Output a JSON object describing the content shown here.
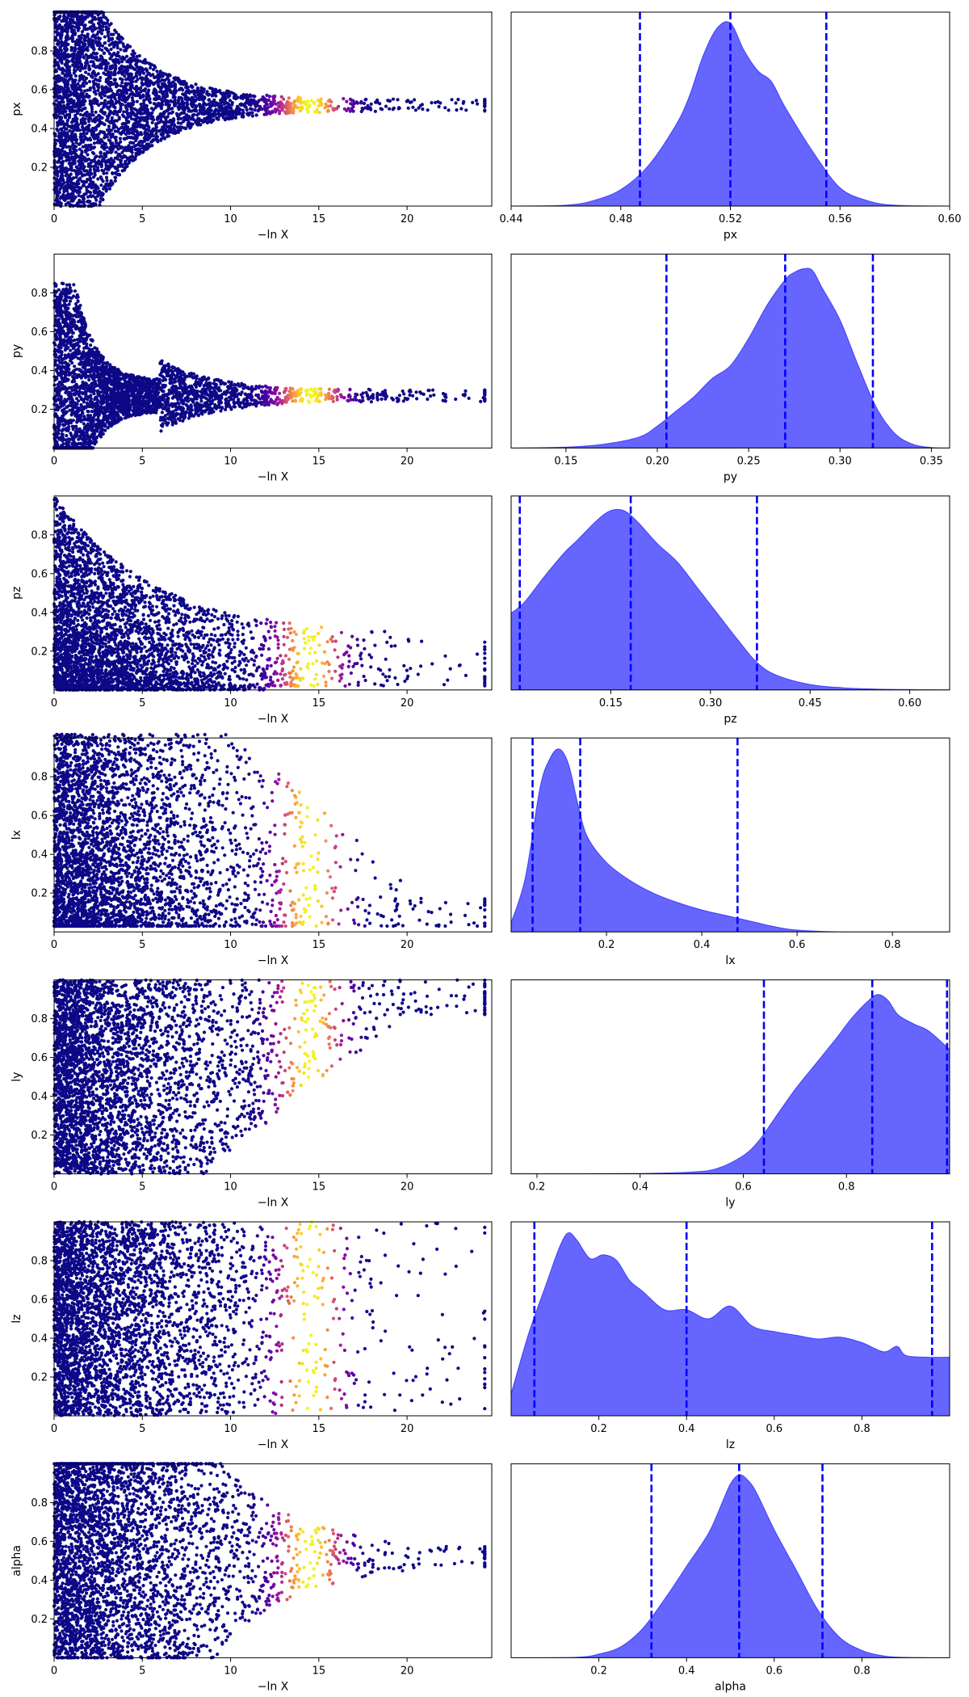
{
  "figure": {
    "kind": "dynesty trace plot"
  },
  "chart_data": [
    {
      "type": "scatter",
      "panel": "trace",
      "xlabel": "−ln X",
      "ylabel": "px",
      "xlim": [
        0,
        24.8
      ],
      "xticks": [
        "0",
        "5",
        "10",
        "15",
        "20"
      ],
      "ylim": [
        0.0,
        1.0
      ],
      "yticks": [
        "0.2",
        "0.4",
        "0.6",
        "0.8"
      ],
      "colormap": "plasma",
      "converge_value": 0.52,
      "converge_spread": 0.03,
      "spread_decay": 3.0,
      "mode": "converge"
    },
    {
      "type": "area",
      "panel": "marginal",
      "xlabel": "px",
      "xlim": [
        0.44,
        0.6
      ],
      "xticks": [
        "0.44",
        "0.48",
        "0.52",
        "0.56",
        "0.60"
      ],
      "curve_x": [
        0.44,
        0.46,
        0.47,
        0.48,
        0.49,
        0.5,
        0.505,
        0.51,
        0.515,
        0.52,
        0.525,
        0.53,
        0.535,
        0.54,
        0.55,
        0.56,
        0.57,
        0.58,
        0.6
      ],
      "curve_y": [
        0.0,
        0.005,
        0.03,
        0.09,
        0.22,
        0.44,
        0.6,
        0.82,
        0.97,
        1.0,
        0.85,
        0.74,
        0.68,
        0.54,
        0.3,
        0.1,
        0.03,
        0.005,
        0.0
      ],
      "quantiles": [
        0.487,
        0.52,
        0.555
      ],
      "color": "#0000ff"
    },
    {
      "type": "scatter",
      "panel": "trace",
      "xlabel": "−ln X",
      "ylabel": "py",
      "xlim": [
        0,
        24.8
      ],
      "xticks": [
        "0",
        "5",
        "10",
        "15",
        "20"
      ],
      "ylim": [
        0.0,
        1.0
      ],
      "yticks": [
        "0.2",
        "0.4",
        "0.6",
        "0.8"
      ],
      "colormap": "plasma",
      "converge_value": 0.27,
      "converge_spread": 0.03,
      "spread_decay": 3.0,
      "mode": "converge_low"
    },
    {
      "type": "area",
      "panel": "marginal",
      "xlabel": "py",
      "xlim": [
        0.12,
        0.36
      ],
      "xticks": [
        "0.15",
        "0.20",
        "0.25",
        "0.30",
        "0.35"
      ],
      "curve_x": [
        0.12,
        0.15,
        0.17,
        0.19,
        0.2,
        0.21,
        0.22,
        0.23,
        0.24,
        0.25,
        0.26,
        0.27,
        0.275,
        0.28,
        0.285,
        0.29,
        0.3,
        0.31,
        0.32,
        0.33,
        0.34,
        0.35,
        0.36
      ],
      "curve_y": [
        0.0,
        0.005,
        0.02,
        0.06,
        0.12,
        0.2,
        0.28,
        0.38,
        0.45,
        0.6,
        0.78,
        0.92,
        0.96,
        0.98,
        0.97,
        0.88,
        0.7,
        0.45,
        0.22,
        0.08,
        0.02,
        0.003,
        0.0
      ],
      "quantiles": [
        0.205,
        0.27,
        0.318
      ],
      "color": "#0000ff"
    },
    {
      "type": "scatter",
      "panel": "trace",
      "xlabel": "−ln X",
      "ylabel": "pz",
      "xlim": [
        0,
        24.8
      ],
      "xticks": [
        "0",
        "5",
        "10",
        "15",
        "20"
      ],
      "ylim": [
        0.0,
        1.0
      ],
      "yticks": [
        "0.2",
        "0.4",
        "0.6",
        "0.8"
      ],
      "colormap": "plasma",
      "converge_value": 0.18,
      "converge_spread": 0.12,
      "spread_decay": 1.2,
      "mode": "low_wide"
    },
    {
      "type": "area",
      "panel": "marginal",
      "xlabel": "pz",
      "xlim": [
        0.0,
        0.66
      ],
      "xticks": [
        "0.15",
        "0.30",
        "0.45",
        "0.60"
      ],
      "curve_x": [
        0.0,
        0.02,
        0.05,
        0.08,
        0.1,
        0.13,
        0.15,
        0.17,
        0.19,
        0.22,
        0.25,
        0.28,
        0.31,
        0.34,
        0.37,
        0.4,
        0.45,
        0.5,
        0.55,
        0.6,
        0.66
      ],
      "curve_y": [
        0.42,
        0.48,
        0.62,
        0.75,
        0.82,
        0.93,
        0.98,
        0.98,
        0.92,
        0.8,
        0.7,
        0.56,
        0.42,
        0.28,
        0.15,
        0.08,
        0.03,
        0.012,
        0.005,
        0.002,
        0.0
      ],
      "quantiles": [
        0.013,
        0.18,
        0.37
      ],
      "color": "#0000ff"
    },
    {
      "type": "scatter",
      "panel": "trace",
      "xlabel": "−ln X",
      "ylabel": "lx",
      "xlim": [
        0,
        24.8
      ],
      "xticks": [
        "0",
        "5",
        "10",
        "15",
        "20"
      ],
      "ylim": [
        0.0,
        1.0
      ],
      "yticks": [
        "0.2",
        "0.4",
        "0.6",
        "0.8"
      ],
      "colormap": "plasma",
      "converge_value": 0.12,
      "converge_spread": 0.25,
      "spread_decay": 0.8,
      "mode": "lx"
    },
    {
      "type": "area",
      "panel": "marginal",
      "xlabel": "lx",
      "xlim": [
        0.0,
        0.92
      ],
      "xticks": [
        "0.2",
        "0.4",
        "0.6",
        "0.8"
      ],
      "curve_x": [
        0.0,
        0.03,
        0.06,
        0.08,
        0.1,
        0.12,
        0.14,
        0.16,
        0.2,
        0.25,
        0.3,
        0.35,
        0.4,
        0.45,
        0.5,
        0.55,
        0.6,
        0.7,
        0.92
      ],
      "curve_y": [
        0.05,
        0.3,
        0.78,
        0.94,
        1.0,
        0.92,
        0.7,
        0.52,
        0.38,
        0.28,
        0.21,
        0.16,
        0.12,
        0.09,
        0.06,
        0.03,
        0.01,
        0.0,
        0.0
      ],
      "quantiles": [
        0.045,
        0.145,
        0.475
      ],
      "color": "#0000ff"
    },
    {
      "type": "scatter",
      "panel": "trace",
      "xlabel": "−ln X",
      "ylabel": "ly",
      "xlim": [
        0,
        24.8
      ],
      "xticks": [
        "0",
        "5",
        "10",
        "15",
        "20"
      ],
      "ylim": [
        0.0,
        1.0
      ],
      "yticks": [
        "0.2",
        "0.4",
        "0.6",
        "0.8"
      ],
      "colormap": "plasma",
      "converge_value": 0.85,
      "converge_spread": 0.05,
      "spread_decay": 0.6,
      "mode": "ly"
    },
    {
      "type": "area",
      "panel": "marginal",
      "xlabel": "ly",
      "xlim": [
        0.15,
        1.0
      ],
      "xticks": [
        "0.2",
        "0.4",
        "0.6",
        "0.8"
      ],
      "curve_x": [
        0.15,
        0.4,
        0.5,
        0.55,
        0.6,
        0.63,
        0.66,
        0.7,
        0.74,
        0.78,
        0.81,
        0.84,
        0.86,
        0.88,
        0.9,
        0.93,
        0.96,
        1.0
      ],
      "curve_y": [
        0.0,
        0.002,
        0.01,
        0.03,
        0.1,
        0.18,
        0.3,
        0.46,
        0.6,
        0.74,
        0.85,
        0.94,
        0.98,
        0.95,
        0.87,
        0.82,
        0.78,
        0.68
      ],
      "quantiles": [
        0.64,
        0.85,
        0.995
      ],
      "color": "#0000ff"
    },
    {
      "type": "scatter",
      "panel": "trace",
      "xlabel": "−ln X",
      "ylabel": "lz",
      "xlim": [
        0,
        24.8
      ],
      "xticks": [
        "0",
        "5",
        "10",
        "15",
        "20"
      ],
      "ylim": [
        0.0,
        1.0
      ],
      "yticks": [
        "0.2",
        "0.4",
        "0.6",
        "0.8"
      ],
      "colormap": "plasma",
      "converge_value": 0.5,
      "converge_spread": 0.5,
      "spread_decay": 0.0,
      "mode": "uniform"
    },
    {
      "type": "area",
      "panel": "marginal",
      "xlabel": "lz",
      "xlim": [
        0.0,
        1.0
      ],
      "xticks": [
        "0.2",
        "0.4",
        "0.6",
        "0.8"
      ],
      "curve_x": [
        0.0,
        0.04,
        0.08,
        0.11,
        0.13,
        0.15,
        0.18,
        0.21,
        0.24,
        0.27,
        0.3,
        0.35,
        0.4,
        0.45,
        0.5,
        0.55,
        0.6,
        0.65,
        0.7,
        0.75,
        0.8,
        0.85,
        0.88,
        0.9,
        0.95,
        1.0
      ],
      "curve_y": [
        0.12,
        0.45,
        0.72,
        0.92,
        1.0,
        0.96,
        0.86,
        0.88,
        0.85,
        0.74,
        0.68,
        0.58,
        0.58,
        0.53,
        0.6,
        0.49,
        0.46,
        0.44,
        0.42,
        0.43,
        0.4,
        0.35,
        0.38,
        0.33,
        0.32,
        0.32
      ],
      "quantiles": [
        0.053,
        0.4,
        0.96
      ],
      "color": "#0000ff"
    },
    {
      "type": "scatter",
      "panel": "trace",
      "xlabel": "−ln X",
      "ylabel": "alpha",
      "xlim": [
        0,
        24.8
      ],
      "xticks": [
        "0",
        "5",
        "10",
        "15",
        "20"
      ],
      "ylim": [
        0.0,
        1.0
      ],
      "yticks": [
        "0.2",
        "0.4",
        "0.6",
        "0.8"
      ],
      "colormap": "plasma",
      "converge_value": 0.52,
      "converge_spread": 0.05,
      "spread_decay": 1.3,
      "mode": "converge_slow"
    },
    {
      "type": "area",
      "panel": "marginal",
      "xlabel": "alpha",
      "xlim": [
        0.0,
        1.0
      ],
      "xticks": [
        "0.2",
        "0.4",
        "0.6",
        "0.8"
      ],
      "curve_x": [
        0.0,
        0.15,
        0.2,
        0.25,
        0.3,
        0.35,
        0.4,
        0.45,
        0.48,
        0.5,
        0.52,
        0.54,
        0.56,
        0.6,
        0.65,
        0.7,
        0.75,
        0.8,
        0.85,
        0.9,
        1.0
      ],
      "curve_y": [
        0.0,
        0.003,
        0.02,
        0.06,
        0.16,
        0.32,
        0.5,
        0.68,
        0.84,
        0.95,
        1.0,
        0.97,
        0.9,
        0.7,
        0.48,
        0.26,
        0.11,
        0.04,
        0.01,
        0.002,
        0.0
      ],
      "quantiles": [
        0.32,
        0.52,
        0.71
      ],
      "color": "#0000ff"
    }
  ]
}
